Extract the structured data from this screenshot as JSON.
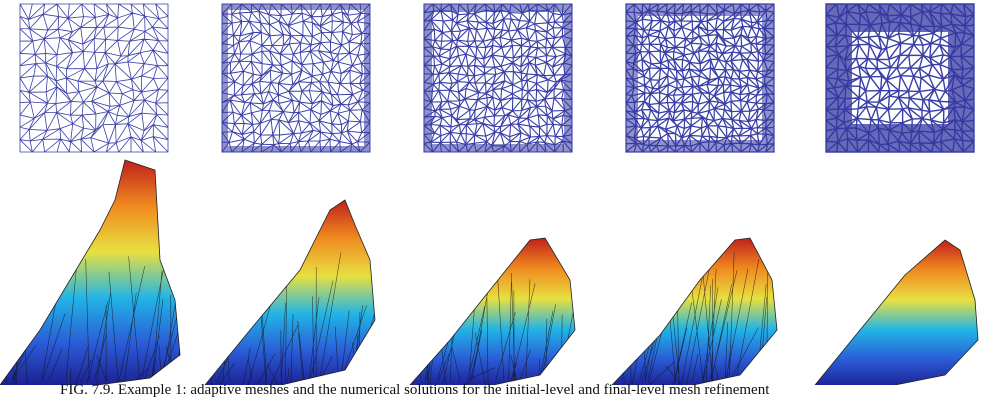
{
  "caption": "FIG. 7.9. Example 1: adaptive meshes and the numerical solutions for the initial-level and final-level mesh refinement"
}
